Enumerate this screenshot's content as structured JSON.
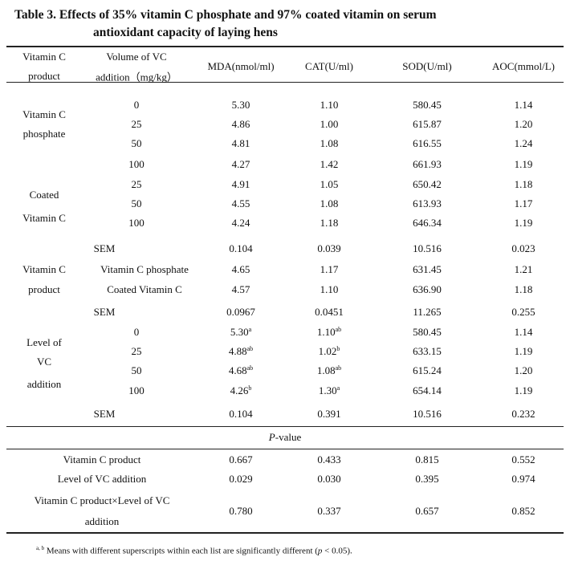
{
  "title_line1": "Table 3. Effects of 35% vitamin C phosphate and 97% coated vitamin on serum",
  "title_line2": "antioxidant capacity of laying hens",
  "headers": {
    "product1": "Vitamin C",
    "product2": "product",
    "volume1": "Volume of VC",
    "volume2": "addition（mg/kg）",
    "mda": "MDA(nmol/ml)",
    "cat": "CAT(U/ml)",
    "sod": "SOD(U/ml)",
    "aoc": "AOC(mmol/L)"
  },
  "groups": [
    {
      "lines": [
        "Vitamin C",
        "phosphate"
      ]
    },
    {
      "lines": [
        "Coated",
        "Vitamin C"
      ]
    },
    {
      "lines": [
        "Vitamin C",
        "product"
      ]
    },
    {
      "lines": [
        "Level of",
        "VC",
        "addition"
      ]
    }
  ],
  "rows": [
    {
      "label": "0",
      "mda": "5.30",
      "cat": "1.10",
      "sod": "580.45",
      "aoc": "1.14"
    },
    {
      "label": "25",
      "mda": "4.86",
      "cat": "1.00",
      "sod": "615.87",
      "aoc": "1.20"
    },
    {
      "label": "50",
      "mda": "4.81",
      "cat": "1.08",
      "sod": "616.55",
      "aoc": "1.24"
    },
    {
      "label": "100",
      "mda": "4.27",
      "cat": "1.42",
      "sod": "661.93",
      "aoc": "1.19"
    },
    {
      "label": "25",
      "mda": "4.91",
      "cat": "1.05",
      "sod": "650.42",
      "aoc": "1.18"
    },
    {
      "label": "50",
      "mda": "4.55",
      "cat": "1.08",
      "sod": "613.93",
      "aoc": "1.17"
    },
    {
      "label": "100",
      "mda": "4.24",
      "cat": "1.18",
      "sod": "646.34",
      "aoc": "1.19"
    },
    {
      "label": "SEM",
      "sem": true,
      "mda": "0.104",
      "cat": "0.039",
      "sod": "10.516",
      "aoc": "0.023"
    },
    {
      "label": "Vitamin C phosphate",
      "mda": "4.65",
      "cat": "1.17",
      "sod": "631.45",
      "aoc": "1.21"
    },
    {
      "label": "Coated Vitamin C",
      "mda": "4.57",
      "cat": "1.10",
      "sod": "636.90",
      "aoc": "1.18"
    },
    {
      "label": "SEM",
      "sem": true,
      "mda": "0.0967",
      "cat": "0.0451",
      "sod": "11.265",
      "aoc": "0.255"
    },
    {
      "label": "0",
      "mda": "5.30",
      "mda_sup": "a",
      "cat": "1.10",
      "cat_sup": "ab",
      "sod": "580.45",
      "aoc": "1.14"
    },
    {
      "label": "25",
      "mda": "4.88",
      "mda_sup": "ab",
      "cat": "1.02",
      "cat_sup": "b",
      "sod": "633.15",
      "aoc": "1.19"
    },
    {
      "label": "50",
      "mda": "4.68",
      "mda_sup": "ab",
      "cat": "1.08",
      "cat_sup": "ab",
      "sod": "615.24",
      "aoc": "1.20"
    },
    {
      "label": "100",
      "mda": "4.26",
      "mda_sup": "b",
      "cat": "1.30",
      "cat_sup": "a",
      "sod": "654.14",
      "aoc": "1.19"
    },
    {
      "label": "SEM",
      "sem": true,
      "mda": "0.104",
      "cat": "0.391",
      "sod": "10.516",
      "aoc": "0.232"
    }
  ],
  "pvalue_label_italic": "P",
  "pvalue_label_rest": "-value",
  "prows": [
    {
      "lines": [
        "Vitamin C product"
      ],
      "mda": "0.667",
      "cat": "0.433",
      "sod": "0.815",
      "aoc": "0.552"
    },
    {
      "lines": [
        "Level of VC addition"
      ],
      "mda": "0.029",
      "cat": "0.030",
      "sod": "0.395",
      "aoc": "0.974"
    },
    {
      "lines": [
        "Vitamin C product×Level of VC",
        "addition"
      ],
      "mda": "0.780",
      "cat": "0.337",
      "sod": "0.657",
      "aoc": "0.852"
    }
  ],
  "footnote": {
    "sup": "a, b",
    "text": " Means with different superscripts within each list are significantly different (",
    "p": "p",
    "tail": " < 0.05)."
  }
}
